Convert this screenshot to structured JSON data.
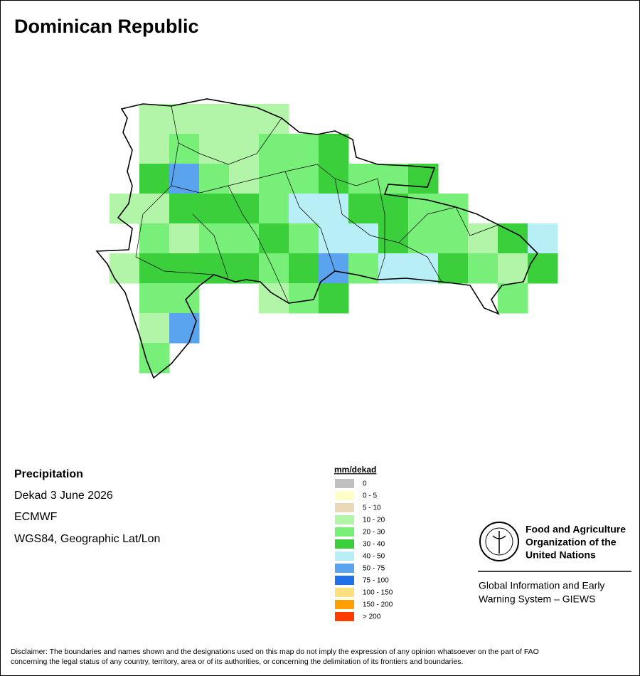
{
  "title": "Dominican Republic",
  "info": {
    "variable": "Precipitation",
    "period": "Dekad 3 June 2026",
    "source": "ECMWF",
    "projection": "WGS84, Geographic Lat/Lon"
  },
  "legend": {
    "title": "mm/dekad",
    "items": [
      {
        "label": "0",
        "color": "#c0c0c0"
      },
      {
        "label": "0 - 5",
        "color": "#fefec8"
      },
      {
        "label": "5 - 10",
        "color": "#ead9b8"
      },
      {
        "label": "10 - 20",
        "color": "#b3f5a8"
      },
      {
        "label": "20 - 30",
        "color": "#78ef78"
      },
      {
        "label": "30 - 40",
        "color": "#3ccf3c"
      },
      {
        "label": "40 - 50",
        "color": "#b8eef5"
      },
      {
        "label": "50 - 75",
        "color": "#5aa3ee"
      },
      {
        "label": "75 - 100",
        "color": "#2070e8"
      },
      {
        "label": "100 - 150",
        "color": "#fee080"
      },
      {
        "label": "150 - 200",
        "color": "#fea000"
      },
      {
        "label": "> 200",
        "color": "#fe3c00"
      }
    ]
  },
  "logo": {
    "org_lines": [
      "Food and Agriculture",
      "Organization of the",
      "United Nations"
    ],
    "system_lines": [
      "Global Information and Early",
      "Warning System – GIEWS"
    ]
  },
  "disclaimer": [
    "Disclaimer: The boundaries and names shown and the designations used on this map do not imply the expression of any opinion whatsoever on the part of FAO",
    "concerning the legal status of any country, territory, area or of its authorities, or concerning the delimitation of its frontiers and boundaries."
  ]
}
